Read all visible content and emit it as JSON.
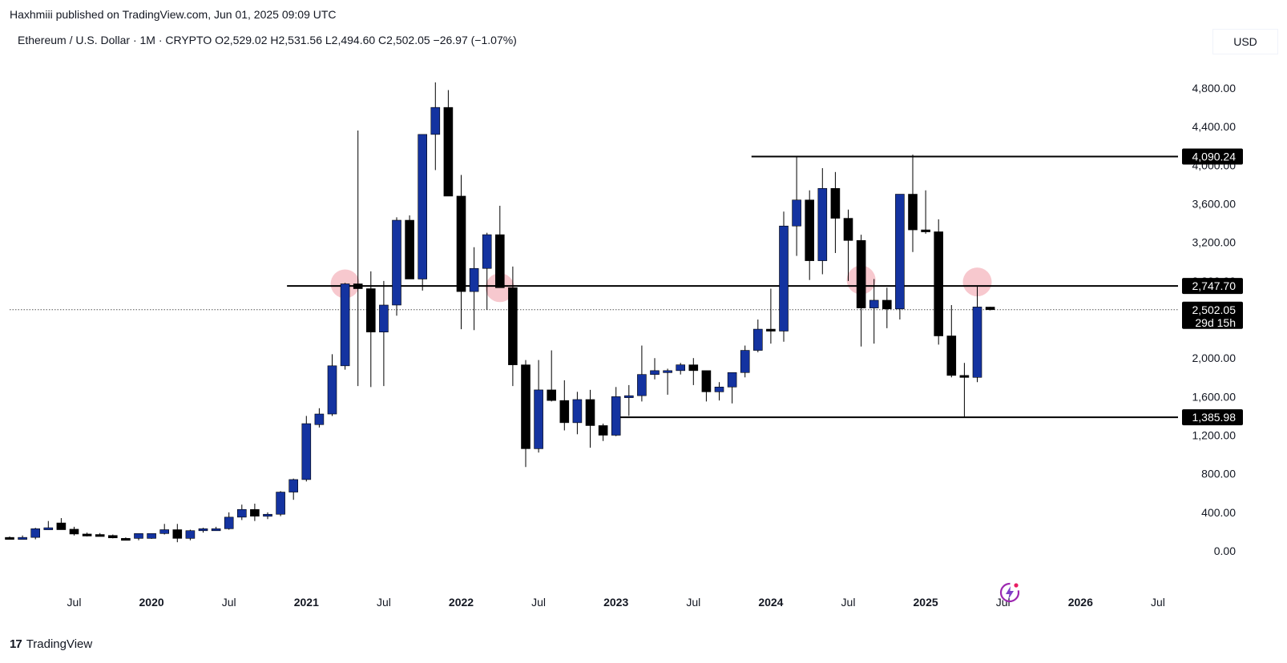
{
  "header": {
    "published": "Haxhmiii published on TradingView.com, Jun 01, 2025 09:09 UTC",
    "symbol_line": "Ethereum / U.S. Dollar · 1M · CRYPTO  O2,529.02  H2,531.56  L2,494.60  C2,502.05  −26.97 (−1.07%)",
    "currency": "USD"
  },
  "footer": {
    "brand": "TradingView",
    "logo_icon": "tradingview-logo-icon"
  },
  "icons": {
    "spark": "sparkle-lightning-icon"
  },
  "colors": {
    "up": "#1433a0",
    "down": "#000000",
    "marker": "#f4b6bd",
    "grid_text": "#131722"
  },
  "chart_data": {
    "type": "candlestick",
    "title": "Ethereum / U.S. Dollar · 1M · CRYPTO",
    "ylim": [
      -200,
      5000
    ],
    "y_ticks": [
      "4,800.00",
      "4,400.00",
      "4,000.00",
      "3,600.00",
      "3,200.00",
      "2,800.00",
      "2,000.00",
      "1,600.00",
      "1,200.00",
      "800.00",
      "400.00",
      "0.00"
    ],
    "x_ticks": [
      {
        "label": "Jul",
        "index": 6,
        "bold": false
      },
      {
        "label": "2020",
        "index": 12,
        "bold": true
      },
      {
        "label": "Jul",
        "index": 18,
        "bold": false
      },
      {
        "label": "2021",
        "index": 24,
        "bold": true
      },
      {
        "label": "Jul",
        "index": 30,
        "bold": false
      },
      {
        "label": "2022",
        "index": 36,
        "bold": true
      },
      {
        "label": "Jul",
        "index": 42,
        "bold": false
      },
      {
        "label": "2023",
        "index": 48,
        "bold": true
      },
      {
        "label": "Jul",
        "index": 54,
        "bold": false
      },
      {
        "label": "2024",
        "index": 60,
        "bold": true
      },
      {
        "label": "Jul",
        "index": 66,
        "bold": false
      },
      {
        "label": "2025",
        "index": 72,
        "bold": true
      },
      {
        "label": "Jul",
        "index": 78,
        "bold": false
      },
      {
        "label": "2026",
        "index": 84,
        "bold": true
      },
      {
        "label": "Jul",
        "index": 90,
        "bold": false
      }
    ],
    "candles": [
      [
        1,
        [
          140,
          150,
          130,
          135
        ]
      ],
      [
        2,
        [
          135,
          160,
          130,
          140
        ]
      ],
      [
        3,
        [
          140,
          240,
          120,
          230
        ]
      ],
      [
        4,
        [
          230,
          310,
          220,
          240
        ]
      ],
      [
        5,
        [
          290,
          340,
          270,
          220
        ]
      ],
      [
        6,
        [
          225,
          250,
          160,
          175
        ]
      ],
      [
        7,
        [
          175,
          190,
          150,
          170
        ]
      ],
      [
        8,
        [
          170,
          185,
          150,
          165
        ]
      ],
      [
        9,
        [
          160,
          170,
          130,
          135
        ]
      ],
      [
        10,
        [
          130,
          140,
          115,
          125
        ]
      ],
      [
        11,
        [
          130,
          150,
          110,
          180
        ]
      ],
      [
        12,
        [
          130,
          180,
          125,
          180
        ]
      ],
      [
        13,
        [
          180,
          280,
          170,
          220
        ]
      ],
      [
        14,
        [
          220,
          280,
          90,
          130
        ]
      ],
      [
        15,
        [
          130,
          220,
          110,
          210
        ]
      ],
      [
        16,
        [
          210,
          240,
          190,
          230
        ]
      ],
      [
        17,
        [
          230,
          250,
          220,
          230
        ]
      ],
      [
        18,
        [
          230,
          400,
          220,
          350
        ]
      ],
      [
        19,
        [
          350,
          480,
          320,
          430
        ]
      ],
      [
        20,
        [
          430,
          490,
          310,
          360
        ]
      ],
      [
        21,
        [
          360,
          400,
          330,
          380
        ]
      ],
      [
        22,
        [
          380,
          620,
          360,
          610
        ]
      ],
      [
        23,
        [
          610,
          750,
          530,
          740
        ]
      ],
      [
        24,
        [
          740,
          1400,
          720,
          1320
        ]
      ],
      [
        25,
        [
          1310,
          1480,
          1280,
          1420
        ]
      ],
      [
        26,
        [
          1420,
          2040,
          1400,
          1920
        ]
      ],
      [
        27,
        [
          1920,
          2780,
          1880,
          2770
        ]
      ],
      [
        28,
        [
          2770,
          4360,
          1710,
          2720
        ]
      ],
      [
        29,
        [
          2720,
          2900,
          1700,
          2270
        ]
      ],
      [
        30,
        [
          2270,
          2800,
          1710,
          2550
        ]
      ],
      [
        31,
        [
          2550,
          3460,
          2440,
          3430
        ]
      ],
      [
        32,
        [
          3430,
          3480,
          2860,
          2820
        ]
      ],
      [
        33,
        [
          2820,
          3700,
          2700,
          4320
        ]
      ],
      [
        34,
        [
          4320,
          4860,
          3950,
          4600
        ]
      ],
      [
        35,
        [
          4600,
          4780,
          3920,
          3680
        ]
      ],
      [
        36,
        [
          3680,
          3900,
          2300,
          2690
        ]
      ],
      [
        37,
        [
          2690,
          3150,
          2290,
          2930
        ]
      ],
      [
        38,
        [
          2930,
          3300,
          2500,
          3280
        ]
      ],
      [
        39,
        [
          3280,
          3580,
          2880,
          2730
        ]
      ],
      [
        40,
        [
          2730,
          2950,
          1710,
          1930
        ]
      ],
      [
        41,
        [
          1930,
          1980,
          870,
          1060
        ]
      ],
      [
        42,
        [
          1060,
          1980,
          1020,
          1670
        ]
      ],
      [
        43,
        [
          1670,
          2080,
          1550,
          1560
        ]
      ],
      [
        44,
        [
          1560,
          1770,
          1250,
          1330
        ]
      ],
      [
        45,
        [
          1330,
          1650,
          1210,
          1570
        ]
      ],
      [
        46,
        [
          1570,
          1670,
          1070,
          1300
        ]
      ],
      [
        47,
        [
          1300,
          1320,
          1140,
          1200
        ]
      ],
      [
        48,
        [
          1200,
          1700,
          1190,
          1600
        ]
      ],
      [
        49,
        [
          1600,
          1720,
          1400,
          1610
        ]
      ],
      [
        50,
        [
          1610,
          2130,
          1550,
          1830
        ]
      ],
      [
        51,
        [
          1830,
          2000,
          1780,
          1870
        ]
      ],
      [
        52,
        [
          1870,
          1890,
          1620,
          1870
        ]
      ],
      [
        53,
        [
          1870,
          1950,
          1830,
          1930
        ]
      ],
      [
        54,
        [
          1930,
          2000,
          1720,
          1870
        ]
      ],
      [
        55,
        [
          1870,
          1870,
          1550,
          1650
        ]
      ],
      [
        56,
        [
          1650,
          1750,
          1560,
          1700
        ]
      ],
      [
        57,
        [
          1700,
          1840,
          1530,
          1850
        ]
      ],
      [
        58,
        [
          1850,
          2130,
          1800,
          2080
        ]
      ],
      [
        59,
        [
          2080,
          2400,
          2060,
          2300
        ]
      ],
      [
        60,
        [
          2300,
          2720,
          2150,
          2280
        ]
      ],
      [
        61,
        [
          2280,
          3520,
          2170,
          3370
        ]
      ],
      [
        62,
        [
          3370,
          4090,
          3060,
          3640
        ]
      ],
      [
        63,
        [
          3640,
          3740,
          2810,
          3010
        ]
      ],
      [
        64,
        [
          3010,
          3970,
          2870,
          3760
        ]
      ],
      [
        65,
        [
          3760,
          3930,
          3090,
          3450
        ]
      ],
      [
        66,
        [
          3450,
          3540,
          2800,
          3220
        ]
      ],
      [
        67,
        [
          3220,
          3280,
          2120,
          2520
        ]
      ],
      [
        68,
        [
          2520,
          2820,
          2150,
          2600
        ]
      ],
      [
        69,
        [
          2600,
          2730,
          2310,
          2510
        ]
      ],
      [
        70,
        [
          2510,
          3560,
          2400,
          3700
        ]
      ],
      [
        71,
        [
          3700,
          4110,
          3100,
          3330
        ]
      ],
      [
        72,
        [
          3330,
          3740,
          3290,
          3310
        ]
      ],
      [
        73,
        [
          3310,
          3440,
          2140,
          2230
        ]
      ],
      [
        74,
        [
          2230,
          2550,
          1800,
          1820
        ]
      ],
      [
        75,
        [
          1820,
          1950,
          1390,
          1800
        ]
      ],
      [
        76,
        [
          1800,
          2740,
          1750,
          2530
        ]
      ],
      [
        77,
        [
          2529.02,
          2531.56,
          2494.6,
          2502.05
        ]
      ]
    ],
    "levels": [
      {
        "value": 4090.24,
        "label": "4,090.24",
        "from_index": 58.5
      },
      {
        "value": 2747.7,
        "label": "2,747.70",
        "from_index": 22.5
      },
      {
        "value": 1385.98,
        "label": "1,385.98",
        "from_index": 48
      }
    ],
    "last_price": {
      "value": 2502.05,
      "label": "2,502.05",
      "countdown": "29d 15h"
    },
    "markers": [
      {
        "index": 27,
        "value": 2770
      },
      {
        "index": 39,
        "value": 2730
      },
      {
        "index": 67,
        "value": 2810
      },
      {
        "index": 76,
        "value": 2790
      }
    ]
  }
}
